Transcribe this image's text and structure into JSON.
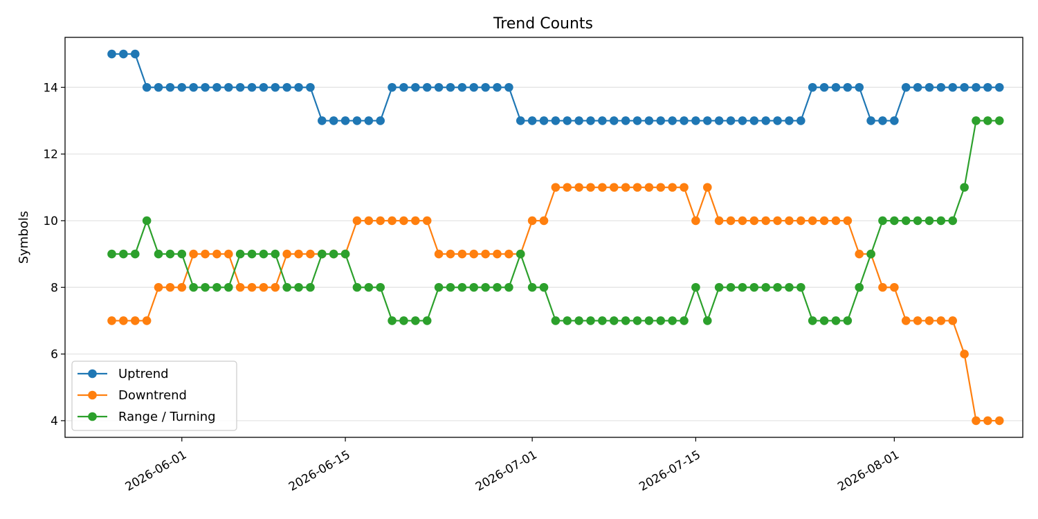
{
  "chart_data": {
    "type": "line",
    "title": "Trend Counts",
    "xlabel": "",
    "ylabel": "Symbols",
    "x_start": "2026-05-26",
    "x_end": "2026-08-07",
    "xlim": [
      "2026-05-22",
      "2026-08-12"
    ],
    "ylim": [
      3.5,
      15.5
    ],
    "y_ticks": [
      4,
      6,
      8,
      10,
      12,
      14
    ],
    "x_ticks": [
      "2026-06-01",
      "2026-06-15",
      "2026-07-01",
      "2026-07-15",
      "2026-08-01"
    ],
    "grid": "horizontal",
    "legend_position": "lower-left",
    "marker": "circle",
    "series": [
      {
        "name": "Uptrend",
        "color": "#1f77b4",
        "values": [
          15,
          15,
          15,
          14,
          14,
          14,
          14,
          14,
          14,
          14,
          14,
          14,
          14,
          14,
          14,
          14,
          14,
          14,
          13,
          13,
          13,
          13,
          13,
          13,
          14,
          14,
          14,
          14,
          14,
          14,
          14,
          14,
          14,
          14,
          14,
          13,
          13,
          13,
          13,
          13,
          13,
          13,
          13,
          13,
          13,
          13,
          13,
          13,
          13,
          13,
          13,
          13,
          13,
          13,
          13,
          13,
          13,
          13,
          13,
          13,
          14,
          14,
          14,
          14,
          14,
          13,
          13,
          13,
          14,
          14,
          14,
          14,
          14,
          14,
          14,
          14,
          14
        ]
      },
      {
        "name": "Downtrend",
        "color": "#ff7f0e",
        "values": [
          7,
          7,
          7,
          7,
          8,
          8,
          8,
          9,
          9,
          9,
          9,
          8,
          8,
          8,
          8,
          9,
          9,
          9,
          9,
          9,
          9,
          10,
          10,
          10,
          10,
          10,
          10,
          10,
          9,
          9,
          9,
          9,
          9,
          9,
          9,
          9,
          10,
          10,
          11,
          11,
          11,
          11,
          11,
          11,
          11,
          11,
          11,
          11,
          11,
          11,
          10,
          11,
          10,
          10,
          10,
          10,
          10,
          10,
          10,
          10,
          10,
          10,
          10,
          10,
          9,
          9,
          8,
          8,
          7,
          7,
          7,
          7,
          7,
          6,
          4,
          4,
          4
        ]
      },
      {
        "name": "Range / Turning",
        "color": "#2ca02c",
        "values": [
          9,
          9,
          9,
          10,
          9,
          9,
          9,
          8,
          8,
          8,
          8,
          9,
          9,
          9,
          9,
          8,
          8,
          8,
          9,
          9,
          9,
          8,
          8,
          8,
          7,
          7,
          7,
          7,
          8,
          8,
          8,
          8,
          8,
          8,
          8,
          9,
          8,
          8,
          7,
          7,
          7,
          7,
          7,
          7,
          7,
          7,
          7,
          7,
          7,
          7,
          8,
          7,
          8,
          8,
          8,
          8,
          8,
          8,
          8,
          8,
          7,
          7,
          7,
          7,
          8,
          9,
          10,
          10,
          10,
          10,
          10,
          10,
          10,
          11,
          13,
          13,
          13
        ]
      }
    ]
  }
}
